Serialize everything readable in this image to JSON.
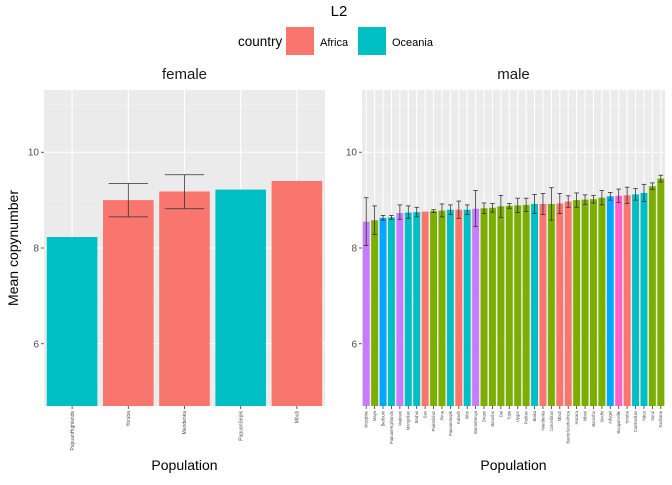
{
  "title": "L2",
  "legend": {
    "title": "country",
    "items": [
      {
        "label": "Africa",
        "color": "#F8766D"
      },
      {
        "label": "Oceania",
        "color": "#00BFC4"
      }
    ]
  },
  "ylabel": "Mean copynumber",
  "colors": {
    "Africa": "#F8766D",
    "Oceania": "#00BFC4",
    "America": "#7CAE00",
    "Asia": "#00A9FF",
    "EastAsia": "#C77CFF",
    "Europe": "#FF61CC",
    "Other": "#7CAE00"
  },
  "chart_data": [
    {
      "type": "bar",
      "panel": "female",
      "xlabel": "Population",
      "ylim": [
        4.7,
        11.3
      ],
      "yticks": [
        6,
        8,
        10
      ],
      "grid": true,
      "categories": [
        "PapuanHighlands",
        "Yoruba",
        "Mandenka",
        "PapuanSepik",
        "Mbuti"
      ],
      "values": [
        8.23,
        9.0,
        9.18,
        9.22,
        9.4
      ],
      "error_low": [
        null,
        8.65,
        8.82,
        null,
        null
      ],
      "error_high": [
        null,
        9.35,
        9.53,
        null,
        null
      ],
      "group": [
        "Oceania",
        "Africa",
        "Africa",
        "Oceania",
        "Africa"
      ]
    },
    {
      "type": "bar",
      "panel": "male",
      "xlabel": "Population",
      "ylim": [
        4.7,
        11.3
      ],
      "yticks": [
        6,
        8,
        10
      ],
      "grid": true,
      "categories": [
        "Mozabite",
        "Maya",
        "Bedouin",
        "PapuanHighlands",
        "Makrani",
        "Mongolian",
        "Brahui",
        "San",
        "Palestinian",
        "Pima",
        "PapuanSepik",
        "Kalash",
        "Xibo",
        "BantuKenya",
        "Druze",
        "Burusho",
        "Dai",
        "Tujia",
        "Uygur",
        "Pathan",
        "Biaka",
        "Mandenka",
        "Colombian",
        "Mbuti",
        "BantuSouthAfrica",
        "Hazara",
        "Mbuti",
        "Burusho",
        "Sindhi",
        "Adygei",
        "Bougainville",
        "Yoruba",
        "Cambodian",
        "Yakut",
        "Surui",
        "Karitiana"
      ],
      "values": [
        8.55,
        8.58,
        8.63,
        8.64,
        8.73,
        8.74,
        8.75,
        8.76,
        8.77,
        8.78,
        8.8,
        8.8,
        8.8,
        8.82,
        8.83,
        8.84,
        8.87,
        8.88,
        8.89,
        8.9,
        8.92,
        8.92,
        8.92,
        8.93,
        8.97,
        9.0,
        9.01,
        9.02,
        9.05,
        9.08,
        9.09,
        9.1,
        9.12,
        9.15,
        9.29,
        9.45
      ],
      "error_low": [
        8.05,
        8.28,
        8.58,
        8.6,
        8.6,
        8.62,
        8.65,
        null,
        8.74,
        8.65,
        8.7,
        8.62,
        8.7,
        8.45,
        8.72,
        8.75,
        8.64,
        8.83,
        8.74,
        8.76,
        8.72,
        8.7,
        8.58,
        8.72,
        8.85,
        8.85,
        8.91,
        8.94,
        8.9,
        9.0,
        8.95,
        8.93,
        9.0,
        8.97,
        9.22,
        9.38
      ],
      "error_high": [
        9.05,
        8.88,
        8.68,
        8.68,
        8.9,
        8.88,
        8.85,
        null,
        8.8,
        8.92,
        8.9,
        8.98,
        8.9,
        9.2,
        8.94,
        8.93,
        9.1,
        8.93,
        9.04,
        9.04,
        9.12,
        9.14,
        9.26,
        9.14,
        9.09,
        9.15,
        9.11,
        9.1,
        9.2,
        9.16,
        9.23,
        9.27,
        9.24,
        9.33,
        9.36,
        9.52
      ],
      "group": [
        "EastAsia",
        "America",
        "Asia",
        "Oceania",
        "EastAsia",
        "Oceania",
        "Oceania",
        "Africa",
        "America",
        "Other",
        "Oceania",
        "Africa",
        "Oceania",
        "EastAsia",
        "Other",
        "Other",
        "Other",
        "Other",
        "Other",
        "Other",
        "Oceania",
        "Africa",
        "America",
        "Africa",
        "Africa",
        "Other",
        "Other",
        "Other",
        "Other",
        "Asia",
        "Europe",
        "Africa",
        "Oceania",
        "Oceania",
        "Other",
        "America"
      ]
    }
  ]
}
